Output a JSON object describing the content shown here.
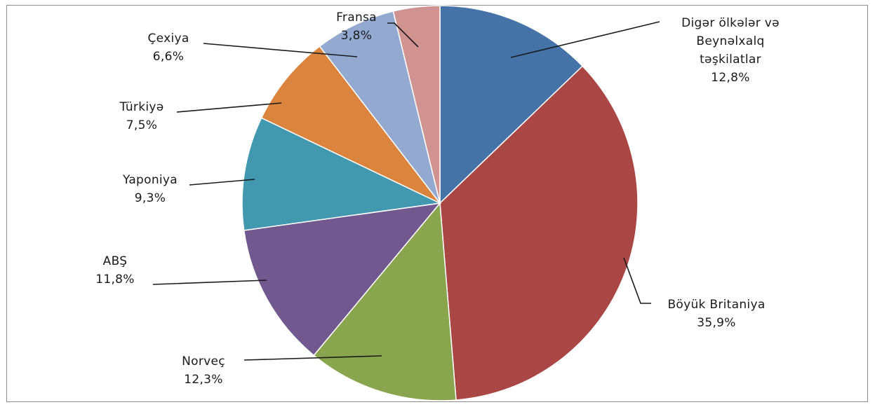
{
  "chart_data": {
    "type": "pie",
    "title": "",
    "start_angle_deg": 0,
    "direction": "clockwise",
    "slices": [
      {
        "label_lines": [
          "Digər ölkələr və",
          "Beynəlxalq",
          "təşkilatlar"
        ],
        "value_label": "12,8%",
        "value": 12.8,
        "color": "#4572a7"
      },
      {
        "label_lines": [
          "Böyük Britaniya"
        ],
        "value_label": "35,9%",
        "value": 35.9,
        "color": "#aa4643"
      },
      {
        "label_lines": [
          "Norveç"
        ],
        "value_label": "12,3%",
        "value": 12.3,
        "color": "#89a54e"
      },
      {
        "label_lines": [
          "ABŞ"
        ],
        "value_label": "11,8%",
        "value": 11.8,
        "color": "#71588f"
      },
      {
        "label_lines": [
          "Yaponiya"
        ],
        "value_label": "9,3%",
        "value": 9.3,
        "color": "#4198af"
      },
      {
        "label_lines": [
          "Türkiyə"
        ],
        "value_label": "7,5%",
        "value": 7.5,
        "color": "#db843d"
      },
      {
        "label_lines": [
          "Çexiya"
        ],
        "value_label": "6,6%",
        "value": 6.6,
        "color": "#93a9cf"
      },
      {
        "label_lines": [
          "Fransa"
        ],
        "value_label": "3,8%",
        "value": 3.8,
        "color": "#d19392"
      }
    ]
  }
}
